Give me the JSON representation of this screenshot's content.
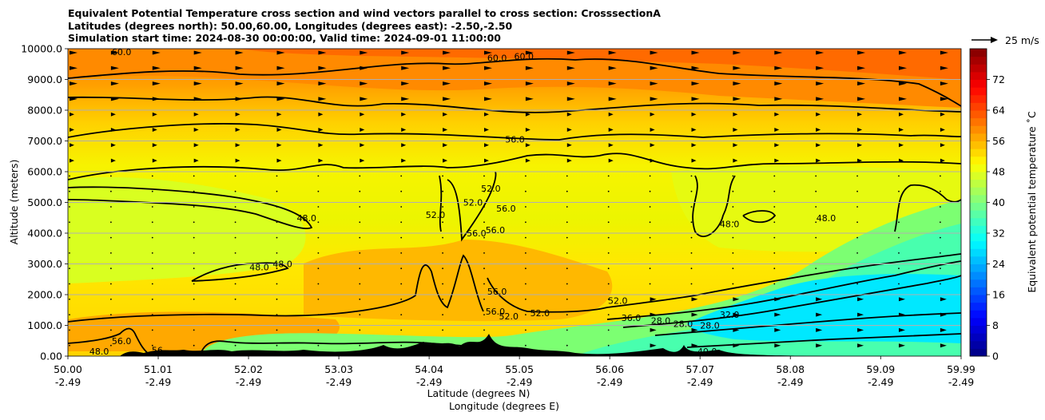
{
  "chart_data": {
    "type": "heatmap",
    "title_lines": [
      "Equivalent Potential Temperature cross section and wind vectors parallel to cross section: CrosssectionA",
      "Latitudes (degrees north): 50.00,60.00, Longitudes (degrees east): -2.50,-2.50",
      "Simulation start time: 2024-08-30 00:00:00, Valid time: 2024-09-01 11:00:00"
    ],
    "ylabel": "Altitude (meters)",
    "xlabel_lines": [
      "Latitude (degrees N)",
      "Longitude (degrees E)"
    ],
    "ylim": [
      0,
      10000
    ],
    "yticks": [
      "0.00",
      "1000.0",
      "2000.0",
      "3000.0",
      "4000.0",
      "5000.0",
      "6000.0",
      "7000.0",
      "8000.0",
      "9000.0",
      "10000.0"
    ],
    "ytick_values": [
      0,
      1000,
      2000,
      3000,
      4000,
      5000,
      6000,
      7000,
      8000,
      9000,
      10000
    ],
    "xlim": [
      50.0,
      59.99
    ],
    "xtick_values": [
      50.0,
      51.01,
      52.02,
      53.03,
      54.04,
      55.05,
      56.06,
      57.07,
      58.08,
      59.09,
      59.99
    ],
    "xtick_lat": [
      "50.00",
      "51.01",
      "52.02",
      "53.03",
      "54.04",
      "55.05",
      "56.06",
      "57.07",
      "58.08",
      "59.09",
      "59.99"
    ],
    "xtick_lon": [
      "-2.49",
      "-2.49",
      "-2.49",
      "-2.49",
      "-2.49",
      "-2.49",
      "-2.49",
      "-2.49",
      "-2.49",
      "-2.49",
      "-2.49"
    ],
    "colorbar": {
      "label": "Equivalent potential temperature ˚C",
      "range": [
        0,
        80
      ],
      "ticks": [
        0,
        8,
        16,
        24,
        32,
        40,
        48,
        56,
        64,
        72
      ],
      "colormap": "jet"
    },
    "quiver_key": "25 m/s",
    "contour_labels": [
      {
        "text": "60.0",
        "lat": 50.6,
        "alt": 9900
      },
      {
        "text": "60.0",
        "lat": 54.8,
        "alt": 9700
      },
      {
        "text": "60.0",
        "lat": 55.1,
        "alt": 9750
      },
      {
        "text": "56.0",
        "lat": 55.0,
        "alt": 7050
      },
      {
        "text": "52.0",
        "lat": 54.53,
        "alt": 5000
      },
      {
        "text": "52.0",
        "lat": 54.73,
        "alt": 5450
      },
      {
        "text": "52.0",
        "lat": 54.11,
        "alt": 4600
      },
      {
        "text": "56.0",
        "lat": 54.57,
        "alt": 4000
      },
      {
        "text": "56.0",
        "lat": 54.9,
        "alt": 4800
      },
      {
        "text": "56.0",
        "lat": 54.78,
        "alt": 4100
      },
      {
        "text": "48.0",
        "lat": 52.67,
        "alt": 4500
      },
      {
        "text": "48.0",
        "lat": 57.4,
        "alt": 4300
      },
      {
        "text": "48.0",
        "lat": 58.48,
        "alt": 4500
      },
      {
        "text": "48.0",
        "lat": 52.14,
        "alt": 2900
      },
      {
        "text": "48.0",
        "lat": 52.4,
        "alt": 3000
      },
      {
        "text": "56.0",
        "lat": 54.8,
        "alt": 2100
      },
      {
        "text": "56.0",
        "lat": 54.78,
        "alt": 1450
      },
      {
        "text": "52.0",
        "lat": 54.93,
        "alt": 1300
      },
      {
        "text": "52.0",
        "lat": 55.28,
        "alt": 1400
      },
      {
        "text": "52.0",
        "lat": 56.15,
        "alt": 1800
      },
      {
        "text": "36.0",
        "lat": 56.3,
        "alt": 1250
      },
      {
        "text": "28.0",
        "lat": 56.63,
        "alt": 1150
      },
      {
        "text": "28.0",
        "lat": 56.88,
        "alt": 1050
      },
      {
        "text": "28.0",
        "lat": 57.18,
        "alt": 1000
      },
      {
        "text": "32.0",
        "lat": 57.4,
        "alt": 1350
      },
      {
        "text": "40.0",
        "lat": 57.15,
        "alt": 150
      },
      {
        "text": "48.0",
        "lat": 50.35,
        "alt": 150
      },
      {
        "text": "56.0",
        "lat": 50.6,
        "alt": 500
      },
      {
        "text": "56",
        "lat": 51.0,
        "alt": 200
      }
    ]
  }
}
